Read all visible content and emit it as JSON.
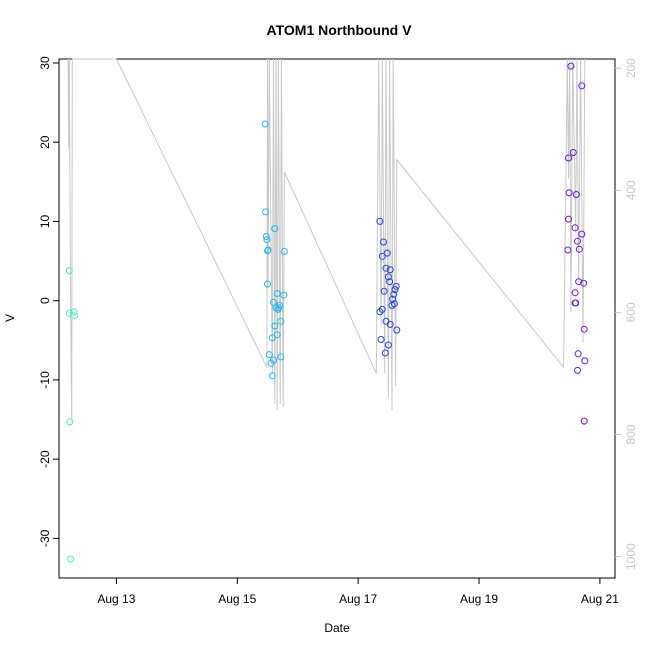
{
  "chart_data": {
    "type": "scatter",
    "title": "ATOM1 Northbound V",
    "xlabel": "Date",
    "ylabel": "V",
    "x_ticks": [
      {
        "day": 13,
        "label": "Aug 13"
      },
      {
        "day": 15,
        "label": "Aug 15"
      },
      {
        "day": 17,
        "label": "Aug 17"
      },
      {
        "day": 19,
        "label": "Aug 19"
      },
      {
        "day": 21,
        "label": "Aug 21"
      }
    ],
    "xlim": [
      12.05,
      21.25
    ],
    "ylim": [
      -35,
      30.5
    ],
    "y_ticks": [
      -30,
      -20,
      -10,
      0,
      10,
      20,
      30
    ],
    "right_axis": {
      "ticks": [
        200,
        400,
        600,
        800,
        1000
      ],
      "lim": [
        1035,
        185
      ],
      "color": "#c8c8c8"
    },
    "grid": false,
    "legend": "none",
    "points": [
      {
        "x": 12.22,
        "y": 3.8,
        "color": "#3ff5c6"
      },
      {
        "x": 12.22,
        "y": -1.6,
        "color": "#3ff5c6"
      },
      {
        "x": 12.3,
        "y": -1.4,
        "color": "#3ff5c6"
      },
      {
        "x": 12.31,
        "y": -1.9,
        "color": "#3ff5c6"
      },
      {
        "x": 12.23,
        "y": -15.3,
        "color": "#3ff5c6"
      },
      {
        "x": 12.24,
        "y": -32.6,
        "color": "#3ff5c6"
      },
      {
        "x": 15.46,
        "y": 22.3,
        "color": "#21b9f0"
      },
      {
        "x": 15.47,
        "y": 11.2,
        "color": "#21b9f0"
      },
      {
        "x": 15.48,
        "y": 8.1,
        "color": "#21b9f0"
      },
      {
        "x": 15.49,
        "y": 7.7,
        "color": "#21b9f0"
      },
      {
        "x": 15.5,
        "y": 6.3,
        "color": "#21b9f0"
      },
      {
        "x": 15.51,
        "y": 6.4,
        "color": "#21b9f0"
      },
      {
        "x": 15.5,
        "y": 2.1,
        "color": "#21b9f0"
      },
      {
        "x": 15.62,
        "y": 9.1,
        "color": "#21b9f0"
      },
      {
        "x": 15.78,
        "y": 6.2,
        "color": "#21b9f0"
      },
      {
        "x": 15.66,
        "y": 0.9,
        "color": "#21b9f0"
      },
      {
        "x": 15.77,
        "y": 0.7,
        "color": "#21b9f0"
      },
      {
        "x": 15.6,
        "y": -0.2,
        "color": "#21b9f0"
      },
      {
        "x": 15.7,
        "y": -0.6,
        "color": "#21b9f0"
      },
      {
        "x": 15.64,
        "y": -0.9,
        "color": "#21b9f0"
      },
      {
        "x": 15.69,
        "y": -0.9,
        "color": "#21b9f0"
      },
      {
        "x": 15.67,
        "y": -1.1,
        "color": "#21b9f0"
      },
      {
        "x": 15.72,
        "y": -2.6,
        "color": "#21b9f0"
      },
      {
        "x": 15.62,
        "y": -3.2,
        "color": "#21b9f0"
      },
      {
        "x": 15.66,
        "y": -4.3,
        "color": "#21b9f0"
      },
      {
        "x": 15.58,
        "y": -4.7,
        "color": "#21b9f0"
      },
      {
        "x": 15.53,
        "y": -6.8,
        "color": "#21b9f0"
      },
      {
        "x": 15.72,
        "y": -7.1,
        "color": "#21b9f0"
      },
      {
        "x": 15.6,
        "y": -7.5,
        "color": "#21b9f0"
      },
      {
        "x": 15.56,
        "y": -7.9,
        "color": "#21b9f0"
      },
      {
        "x": 15.58,
        "y": -9.5,
        "color": "#21b9f0"
      },
      {
        "x": 17.36,
        "y": 10.0,
        "color": "#2440e3"
      },
      {
        "x": 17.42,
        "y": 7.4,
        "color": "#2440e3"
      },
      {
        "x": 17.48,
        "y": 6.0,
        "color": "#2440e3"
      },
      {
        "x": 17.4,
        "y": 5.6,
        "color": "#2440e3"
      },
      {
        "x": 17.46,
        "y": 4.1,
        "color": "#2440e3"
      },
      {
        "x": 17.53,
        "y": 3.9,
        "color": "#2440e3"
      },
      {
        "x": 17.5,
        "y": 3.0,
        "color": "#2440e3"
      },
      {
        "x": 17.52,
        "y": 2.4,
        "color": "#2440e3"
      },
      {
        "x": 17.63,
        "y": 1.8,
        "color": "#2440e3"
      },
      {
        "x": 17.61,
        "y": 1.4,
        "color": "#2440e3"
      },
      {
        "x": 17.43,
        "y": 1.2,
        "color": "#2440e3"
      },
      {
        "x": 17.59,
        "y": 0.8,
        "color": "#2440e3"
      },
      {
        "x": 17.57,
        "y": 0.2,
        "color": "#2440e3"
      },
      {
        "x": 17.6,
        "y": -0.4,
        "color": "#2440e3"
      },
      {
        "x": 17.56,
        "y": -0.6,
        "color": "#2440e3"
      },
      {
        "x": 17.4,
        "y": -1.1,
        "color": "#2440e3"
      },
      {
        "x": 17.36,
        "y": -1.4,
        "color": "#2440e3"
      },
      {
        "x": 17.46,
        "y": -2.6,
        "color": "#2440e3"
      },
      {
        "x": 17.53,
        "y": -3.0,
        "color": "#2440e3"
      },
      {
        "x": 17.64,
        "y": -3.7,
        "color": "#2440e3"
      },
      {
        "x": 17.38,
        "y": -4.9,
        "color": "#2440e3"
      },
      {
        "x": 17.5,
        "y": -5.6,
        "color": "#2440e3"
      },
      {
        "x": 17.45,
        "y": -6.6,
        "color": "#2440e3"
      },
      {
        "x": 20.52,
        "y": 29.6,
        "color": "#6b17e6"
      },
      {
        "x": 20.7,
        "y": 27.1,
        "color": "#6b17e6"
      },
      {
        "x": 20.56,
        "y": 18.7,
        "color": "#6b17e6"
      },
      {
        "x": 20.48,
        "y": 18.0,
        "color": "#6b17e6"
      },
      {
        "x": 20.49,
        "y": 13.6,
        "color": "#6b17e6"
      },
      {
        "x": 20.61,
        "y": 13.4,
        "color": "#6b17e6"
      },
      {
        "x": 20.48,
        "y": 10.3,
        "color": "#6b17e6"
      },
      {
        "x": 20.59,
        "y": 9.2,
        "color": "#6b17e6"
      },
      {
        "x": 20.7,
        "y": 8.4,
        "color": "#6b17e6"
      },
      {
        "x": 20.63,
        "y": 7.5,
        "color": "#6b17e6"
      },
      {
        "x": 20.47,
        "y": 6.4,
        "color": "#6b17e6"
      },
      {
        "x": 20.66,
        "y": 6.5,
        "color": "#6b17e6"
      },
      {
        "x": 20.65,
        "y": 2.4,
        "color": "#6b17e6"
      },
      {
        "x": 20.73,
        "y": 2.2,
        "color": "#6b17e6"
      },
      {
        "x": 20.59,
        "y": 1.0,
        "color": "#6b17e6"
      },
      {
        "x": 20.59,
        "y": -0.3,
        "color": "#6b17e6"
      },
      {
        "x": 20.6,
        "y": -0.3,
        "color": "#6b17e6"
      },
      {
        "x": 20.74,
        "y": -3.6,
        "color": "#6b17e6"
      },
      {
        "x": 20.64,
        "y": -6.7,
        "color": "#6b17e6"
      },
      {
        "x": 20.75,
        "y": -7.6,
        "color": "#6b17e6"
      },
      {
        "x": 20.63,
        "y": -8.8,
        "color": "#6b17e6"
      },
      {
        "x": 20.74,
        "y": -15.2,
        "color": "#6b17e6"
      }
    ],
    "depth_series": {
      "color": "#c8c8c8",
      "axis": "right",
      "points": [
        [
          12.2,
          185
        ],
        [
          12.21,
          330
        ],
        [
          12.22,
          185
        ],
        [
          12.24,
          560
        ],
        [
          12.26,
          780
        ],
        [
          12.27,
          185
        ],
        [
          12.3,
          185
        ],
        [
          13.0,
          185
        ],
        [
          15.49,
          690
        ],
        [
          15.5,
          185
        ],
        [
          15.51,
          560
        ],
        [
          15.53,
          185
        ],
        [
          15.58,
          700
        ],
        [
          15.6,
          185
        ],
        [
          15.62,
          750
        ],
        [
          15.64,
          185
        ],
        [
          15.66,
          760
        ],
        [
          15.68,
          185
        ],
        [
          15.71,
          750
        ],
        [
          15.73,
          185
        ],
        [
          15.76,
          755
        ],
        [
          15.78,
          370
        ],
        [
          17.3,
          700
        ],
        [
          17.34,
          185
        ],
        [
          17.38,
          620
        ],
        [
          17.4,
          185
        ],
        [
          17.44,
          700
        ],
        [
          17.46,
          185
        ],
        [
          17.5,
          740
        ],
        [
          17.52,
          185
        ],
        [
          17.56,
          760
        ],
        [
          17.58,
          185
        ],
        [
          17.62,
          720
        ],
        [
          17.64,
          350
        ],
        [
          20.4,
          690
        ],
        [
          20.46,
          185
        ],
        [
          20.48,
          380
        ],
        [
          20.5,
          185
        ],
        [
          20.52,
          600
        ],
        [
          20.55,
          185
        ],
        [
          20.6,
          470
        ],
        [
          20.62,
          185
        ],
        [
          20.65,
          550
        ],
        [
          20.68,
          185
        ],
        [
          20.72,
          650
        ],
        [
          20.75,
          185
        ]
      ]
    }
  }
}
